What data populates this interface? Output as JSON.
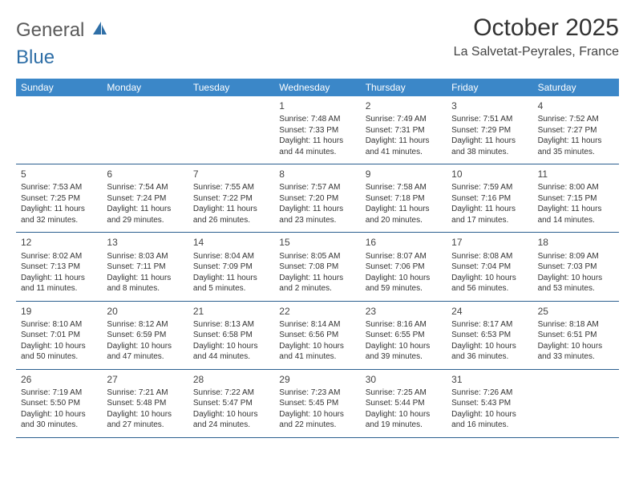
{
  "logo": {
    "text_general": "General",
    "text_blue": "Blue"
  },
  "title": "October 2025",
  "location": "La Salvetat-Peyrales, France",
  "colors": {
    "header_bg": "#3b87c8",
    "header_text": "#ffffff",
    "row_border": "#2b5f8f",
    "body_text": "#333333",
    "logo_gray": "#5a5a5a",
    "logo_blue": "#2f6fa7"
  },
  "weekdays": [
    "Sunday",
    "Monday",
    "Tuesday",
    "Wednesday",
    "Thursday",
    "Friday",
    "Saturday"
  ],
  "weeks": [
    [
      null,
      null,
      null,
      {
        "n": "1",
        "sr": "Sunrise: 7:48 AM",
        "ss": "Sunset: 7:33 PM",
        "d1": "Daylight: 11 hours",
        "d2": "and 44 minutes."
      },
      {
        "n": "2",
        "sr": "Sunrise: 7:49 AM",
        "ss": "Sunset: 7:31 PM",
        "d1": "Daylight: 11 hours",
        "d2": "and 41 minutes."
      },
      {
        "n": "3",
        "sr": "Sunrise: 7:51 AM",
        "ss": "Sunset: 7:29 PM",
        "d1": "Daylight: 11 hours",
        "d2": "and 38 minutes."
      },
      {
        "n": "4",
        "sr": "Sunrise: 7:52 AM",
        "ss": "Sunset: 7:27 PM",
        "d1": "Daylight: 11 hours",
        "d2": "and 35 minutes."
      }
    ],
    [
      {
        "n": "5",
        "sr": "Sunrise: 7:53 AM",
        "ss": "Sunset: 7:25 PM",
        "d1": "Daylight: 11 hours",
        "d2": "and 32 minutes."
      },
      {
        "n": "6",
        "sr": "Sunrise: 7:54 AM",
        "ss": "Sunset: 7:24 PM",
        "d1": "Daylight: 11 hours",
        "d2": "and 29 minutes."
      },
      {
        "n": "7",
        "sr": "Sunrise: 7:55 AM",
        "ss": "Sunset: 7:22 PM",
        "d1": "Daylight: 11 hours",
        "d2": "and 26 minutes."
      },
      {
        "n": "8",
        "sr": "Sunrise: 7:57 AM",
        "ss": "Sunset: 7:20 PM",
        "d1": "Daylight: 11 hours",
        "d2": "and 23 minutes."
      },
      {
        "n": "9",
        "sr": "Sunrise: 7:58 AM",
        "ss": "Sunset: 7:18 PM",
        "d1": "Daylight: 11 hours",
        "d2": "and 20 minutes."
      },
      {
        "n": "10",
        "sr": "Sunrise: 7:59 AM",
        "ss": "Sunset: 7:16 PM",
        "d1": "Daylight: 11 hours",
        "d2": "and 17 minutes."
      },
      {
        "n": "11",
        "sr": "Sunrise: 8:00 AM",
        "ss": "Sunset: 7:15 PM",
        "d1": "Daylight: 11 hours",
        "d2": "and 14 minutes."
      }
    ],
    [
      {
        "n": "12",
        "sr": "Sunrise: 8:02 AM",
        "ss": "Sunset: 7:13 PM",
        "d1": "Daylight: 11 hours",
        "d2": "and 11 minutes."
      },
      {
        "n": "13",
        "sr": "Sunrise: 8:03 AM",
        "ss": "Sunset: 7:11 PM",
        "d1": "Daylight: 11 hours",
        "d2": "and 8 minutes."
      },
      {
        "n": "14",
        "sr": "Sunrise: 8:04 AM",
        "ss": "Sunset: 7:09 PM",
        "d1": "Daylight: 11 hours",
        "d2": "and 5 minutes."
      },
      {
        "n": "15",
        "sr": "Sunrise: 8:05 AM",
        "ss": "Sunset: 7:08 PM",
        "d1": "Daylight: 11 hours",
        "d2": "and 2 minutes."
      },
      {
        "n": "16",
        "sr": "Sunrise: 8:07 AM",
        "ss": "Sunset: 7:06 PM",
        "d1": "Daylight: 10 hours",
        "d2": "and 59 minutes."
      },
      {
        "n": "17",
        "sr": "Sunrise: 8:08 AM",
        "ss": "Sunset: 7:04 PM",
        "d1": "Daylight: 10 hours",
        "d2": "and 56 minutes."
      },
      {
        "n": "18",
        "sr": "Sunrise: 8:09 AM",
        "ss": "Sunset: 7:03 PM",
        "d1": "Daylight: 10 hours",
        "d2": "and 53 minutes."
      }
    ],
    [
      {
        "n": "19",
        "sr": "Sunrise: 8:10 AM",
        "ss": "Sunset: 7:01 PM",
        "d1": "Daylight: 10 hours",
        "d2": "and 50 minutes."
      },
      {
        "n": "20",
        "sr": "Sunrise: 8:12 AM",
        "ss": "Sunset: 6:59 PM",
        "d1": "Daylight: 10 hours",
        "d2": "and 47 minutes."
      },
      {
        "n": "21",
        "sr": "Sunrise: 8:13 AM",
        "ss": "Sunset: 6:58 PM",
        "d1": "Daylight: 10 hours",
        "d2": "and 44 minutes."
      },
      {
        "n": "22",
        "sr": "Sunrise: 8:14 AM",
        "ss": "Sunset: 6:56 PM",
        "d1": "Daylight: 10 hours",
        "d2": "and 41 minutes."
      },
      {
        "n": "23",
        "sr": "Sunrise: 8:16 AM",
        "ss": "Sunset: 6:55 PM",
        "d1": "Daylight: 10 hours",
        "d2": "and 39 minutes."
      },
      {
        "n": "24",
        "sr": "Sunrise: 8:17 AM",
        "ss": "Sunset: 6:53 PM",
        "d1": "Daylight: 10 hours",
        "d2": "and 36 minutes."
      },
      {
        "n": "25",
        "sr": "Sunrise: 8:18 AM",
        "ss": "Sunset: 6:51 PM",
        "d1": "Daylight: 10 hours",
        "d2": "and 33 minutes."
      }
    ],
    [
      {
        "n": "26",
        "sr": "Sunrise: 7:19 AM",
        "ss": "Sunset: 5:50 PM",
        "d1": "Daylight: 10 hours",
        "d2": "and 30 minutes."
      },
      {
        "n": "27",
        "sr": "Sunrise: 7:21 AM",
        "ss": "Sunset: 5:48 PM",
        "d1": "Daylight: 10 hours",
        "d2": "and 27 minutes."
      },
      {
        "n": "28",
        "sr": "Sunrise: 7:22 AM",
        "ss": "Sunset: 5:47 PM",
        "d1": "Daylight: 10 hours",
        "d2": "and 24 minutes."
      },
      {
        "n": "29",
        "sr": "Sunrise: 7:23 AM",
        "ss": "Sunset: 5:45 PM",
        "d1": "Daylight: 10 hours",
        "d2": "and 22 minutes."
      },
      {
        "n": "30",
        "sr": "Sunrise: 7:25 AM",
        "ss": "Sunset: 5:44 PM",
        "d1": "Daylight: 10 hours",
        "d2": "and 19 minutes."
      },
      {
        "n": "31",
        "sr": "Sunrise: 7:26 AM",
        "ss": "Sunset: 5:43 PM",
        "d1": "Daylight: 10 hours",
        "d2": "and 16 minutes."
      },
      null
    ]
  ]
}
